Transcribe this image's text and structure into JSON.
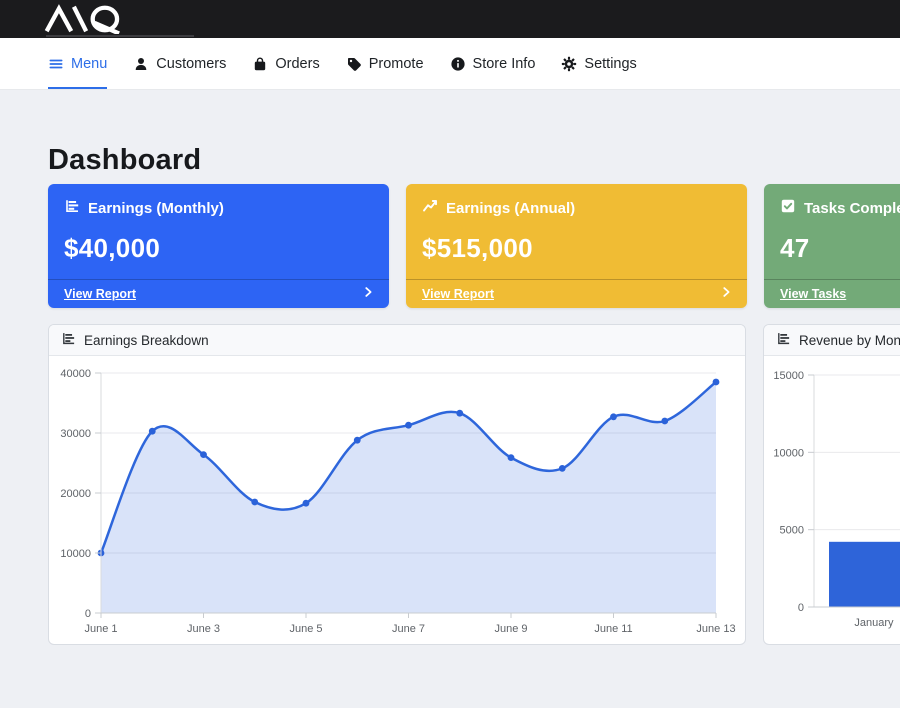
{
  "header": {
    "logo_text": "AQ"
  },
  "nav": {
    "active_color": "#2d6ee8",
    "items": [
      {
        "label": "Menu",
        "icon": "menu-icon",
        "active": true
      },
      {
        "label": "Customers",
        "icon": "person-icon",
        "active": false
      },
      {
        "label": "Orders",
        "icon": "bag-icon",
        "active": false
      },
      {
        "label": "Promote",
        "icon": "tag-icon",
        "active": false
      },
      {
        "label": "Store Info",
        "icon": "info-circle-icon",
        "active": false
      },
      {
        "label": "Settings",
        "icon": "gear-icon",
        "active": false
      }
    ]
  },
  "page": {
    "title": "Dashboard"
  },
  "cards": [
    {
      "title": "Earnings (Monthly)",
      "value": "$40,000",
      "link_label": "View Report",
      "color": "#2d64f4",
      "icon": "bar-chart-icon"
    },
    {
      "title": "Earnings (Annual)",
      "value": "$515,000",
      "link_label": "View Report",
      "color": "#f0bc34",
      "icon": "line-chart-icon"
    },
    {
      "title": "Tasks Completed",
      "value": "47",
      "link_label": "View Tasks",
      "color": "#73aa78",
      "icon": "check-square-icon"
    }
  ],
  "chart_data": [
    {
      "type": "area",
      "title": "Earnings Breakdown",
      "x": [
        "June 1",
        "June 2",
        "June 3",
        "June 4",
        "June 5",
        "June 6",
        "June 7",
        "June 8",
        "June 9",
        "June 10",
        "June 11",
        "June 12",
        "June 13"
      ],
      "values": [
        10000,
        30300,
        26400,
        18500,
        18300,
        28800,
        31300,
        33300,
        25900,
        24100,
        32700,
        32000,
        38500
      ],
      "ylim": [
        0,
        40000
      ],
      "yticks": [
        0,
        10000,
        20000,
        30000,
        40000
      ],
      "xticks_shown": [
        "June 1",
        "June 3",
        "June 5",
        "June 7",
        "June 9",
        "June 11",
        "June 13"
      ],
      "grid": true,
      "legend": false,
      "line_color": "#2e66db",
      "fill_color": "rgba(46,102,219,0.18)",
      "point_color": "#2b62d9"
    },
    {
      "type": "bar",
      "title": "Revenue by Month",
      "categories": [
        "January"
      ],
      "values": [
        4215
      ],
      "ylim": [
        0,
        15000
      ],
      "yticks": [
        0,
        5000,
        10000,
        15000
      ],
      "grid": true,
      "legend": false,
      "bar_color": "#2e64d9"
    }
  ]
}
